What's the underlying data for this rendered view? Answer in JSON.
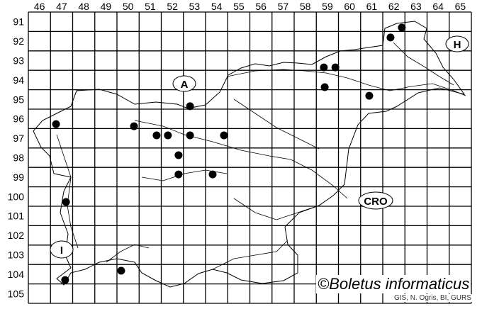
{
  "map": {
    "col_labels": [
      "46",
      "47",
      "48",
      "49",
      "50",
      "51",
      "52",
      "53",
      "54",
      "55",
      "56",
      "57",
      "58",
      "59",
      "60",
      "61",
      "62",
      "63",
      "64",
      "65"
    ],
    "row_labels": [
      "91",
      "92",
      "93",
      "94",
      "95",
      "96",
      "97",
      "98",
      "99",
      "100",
      "101",
      "102",
      "103",
      "104",
      "105"
    ],
    "country_labels": {
      "austria": "A",
      "hungary": "H",
      "croatia": "CRO",
      "italy": "I"
    },
    "occurrences": [
      {
        "x": 47.25,
        "y": 96.77
      },
      {
        "x": 50.77,
        "y": 96.88
      },
      {
        "x": 51.79,
        "y": 97.35
      },
      {
        "x": 52.3,
        "y": 97.35
      },
      {
        "x": 53.3,
        "y": 97.35
      },
      {
        "x": 53.3,
        "y": 95.85
      },
      {
        "x": 54.83,
        "y": 97.35
      },
      {
        "x": 52.78,
        "y": 98.37
      },
      {
        "x": 52.78,
        "y": 99.36
      },
      {
        "x": 54.32,
        "y": 99.36
      },
      {
        "x": 47.7,
        "y": 100.78
      },
      {
        "x": 47.66,
        "y": 104.8
      },
      {
        "x": 50.19,
        "y": 104.32
      },
      {
        "x": 59.34,
        "y": 93.85
      },
      {
        "x": 59.86,
        "y": 93.85
      },
      {
        "x": 59.38,
        "y": 94.87
      },
      {
        "x": 61.39,
        "y": 95.31
      },
      {
        "x": 62.35,
        "y": 92.31
      },
      {
        "x": 62.86,
        "y": 91.8
      }
    ],
    "dot_color": "#000000",
    "line_color": "#000000"
  },
  "copyright": "©Boletus informaticus",
  "attribution": "GIS, N. Ogris, BI, GURS"
}
